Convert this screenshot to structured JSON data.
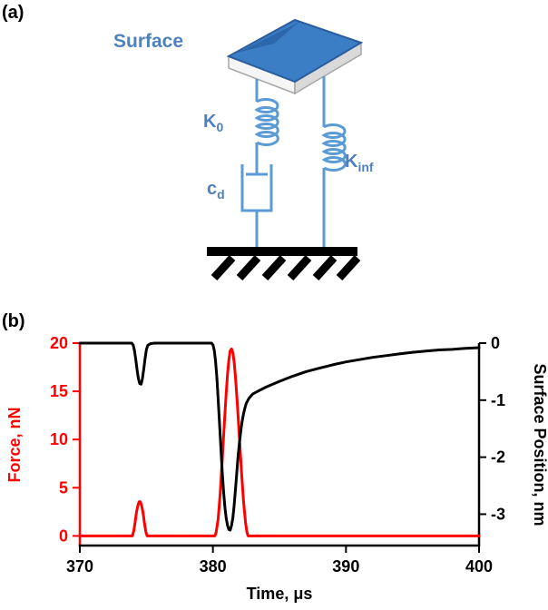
{
  "figure": {
    "panel_a_label": "(a)",
    "panel_b_label": "(b)"
  },
  "diagram": {
    "surface_label": "Surface",
    "spring_k0": {
      "base": "K",
      "sub": "0"
    },
    "damper_cd": {
      "base": "c",
      "sub": "d"
    },
    "spring_kinf": {
      "base": "K",
      "sub": "inf"
    },
    "colors": {
      "line_blue": "#5b9bd5",
      "label_blue": "#4f81bd",
      "block_fill": "#3b7ec6",
      "block_edge": "#2a5d9e",
      "block_shade": "#2d67ab",
      "band_front": "#f5f5f5",
      "band_side": "#d9d9d9",
      "band_edge": "#a6a6a6",
      "ground": "#000000"
    }
  },
  "chart_data": {
    "type": "line",
    "title": "",
    "xlabel": "Time, μs",
    "xlim": [
      370,
      400
    ],
    "x_ticks": [
      370,
      380,
      390,
      400
    ],
    "grid": false,
    "legend": "none",
    "left_axis": {
      "label": "Force, nN",
      "color": "#ff0000",
      "range": [
        -1,
        20
      ],
      "ticks": [
        0,
        5,
        10,
        15,
        20
      ]
    },
    "right_axis": {
      "label": "Surface Position, nm",
      "color": "#000000",
      "range": [
        -3.55,
        0
      ],
      "ticks": [
        0,
        -1,
        -2,
        -3
      ]
    },
    "series": [
      {
        "name": "Force",
        "axis": "left",
        "color": "#ff0000",
        "points": [
          [
            370,
            0
          ],
          [
            373.9,
            0
          ],
          [
            373.95,
            0
          ],
          [
            374.05,
            0.5
          ],
          [
            374.15,
            1.4
          ],
          [
            374.25,
            2.4
          ],
          [
            374.35,
            3.1
          ],
          [
            374.45,
            3.55
          ],
          [
            374.55,
            3.55
          ],
          [
            374.65,
            3.1
          ],
          [
            374.75,
            2.4
          ],
          [
            374.85,
            1.4
          ],
          [
            374.95,
            0.5
          ],
          [
            375.05,
            0
          ],
          [
            375.2,
            0
          ],
          [
            380.15,
            0
          ],
          [
            380.25,
            0.4
          ],
          [
            380.4,
            1.8
          ],
          [
            380.55,
            4.4
          ],
          [
            380.7,
            7.8
          ],
          [
            380.85,
            11.4
          ],
          [
            381.0,
            14.8
          ],
          [
            381.1,
            16.8
          ],
          [
            381.2,
            18.3
          ],
          [
            381.3,
            19.2
          ],
          [
            381.4,
            19.4
          ],
          [
            381.5,
            19.0
          ],
          [
            381.6,
            18.0
          ],
          [
            381.7,
            16.4
          ],
          [
            381.85,
            13.4
          ],
          [
            382.0,
            10.0
          ],
          [
            382.15,
            6.6
          ],
          [
            382.3,
            3.6
          ],
          [
            382.45,
            1.4
          ],
          [
            382.55,
            0.4
          ],
          [
            382.65,
            0
          ],
          [
            383,
            0
          ],
          [
            400,
            0
          ]
        ]
      },
      {
        "name": "Surface Position",
        "axis": "right",
        "color": "#000000",
        "points": [
          [
            370,
            0
          ],
          [
            373.9,
            0
          ],
          [
            374.0,
            -0.03
          ],
          [
            374.1,
            -0.12
          ],
          [
            374.2,
            -0.28
          ],
          [
            374.3,
            -0.47
          ],
          [
            374.4,
            -0.62
          ],
          [
            374.5,
            -0.71
          ],
          [
            374.6,
            -0.72
          ],
          [
            374.7,
            -0.63
          ],
          [
            374.8,
            -0.46
          ],
          [
            374.9,
            -0.27
          ],
          [
            375.0,
            -0.12
          ],
          [
            375.1,
            -0.04
          ],
          [
            375.3,
            -0.01
          ],
          [
            375.6,
            0
          ],
          [
            379.9,
            0
          ],
          [
            380.0,
            -0.03
          ],
          [
            380.1,
            -0.12
          ],
          [
            380.2,
            -0.32
          ],
          [
            380.3,
            -0.62
          ],
          [
            380.4,
            -1.0
          ],
          [
            380.5,
            -1.42
          ],
          [
            380.6,
            -1.85
          ],
          [
            380.7,
            -2.25
          ],
          [
            380.8,
            -2.6
          ],
          [
            380.9,
            -2.88
          ],
          [
            381.0,
            -3.07
          ],
          [
            381.1,
            -3.2
          ],
          [
            381.2,
            -3.27
          ],
          [
            381.3,
            -3.28
          ],
          [
            381.4,
            -3.2
          ],
          [
            381.5,
            -3.06
          ],
          [
            381.6,
            -2.84
          ],
          [
            381.7,
            -2.55
          ],
          [
            381.8,
            -2.25
          ],
          [
            381.9,
            -1.97
          ],
          [
            382.0,
            -1.73
          ],
          [
            382.1,
            -1.53
          ],
          [
            382.2,
            -1.37
          ],
          [
            382.3,
            -1.24
          ],
          [
            382.4,
            -1.14
          ],
          [
            382.5,
            -1.06
          ],
          [
            382.7,
            -0.97
          ],
          [
            383.0,
            -0.89
          ],
          [
            383.5,
            -0.83
          ],
          [
            384,
            -0.77
          ],
          [
            385,
            -0.67
          ],
          [
            386,
            -0.58
          ],
          [
            387,
            -0.5
          ],
          [
            388,
            -0.44
          ],
          [
            389,
            -0.38
          ],
          [
            390,
            -0.33
          ],
          [
            391,
            -0.29
          ],
          [
            392,
            -0.25
          ],
          [
            393,
            -0.22
          ],
          [
            394,
            -0.19
          ],
          [
            395,
            -0.16
          ],
          [
            396,
            -0.14
          ],
          [
            397,
            -0.12
          ],
          [
            398,
            -0.11
          ],
          [
            399,
            -0.09
          ],
          [
            400,
            -0.08
          ]
        ]
      }
    ]
  }
}
